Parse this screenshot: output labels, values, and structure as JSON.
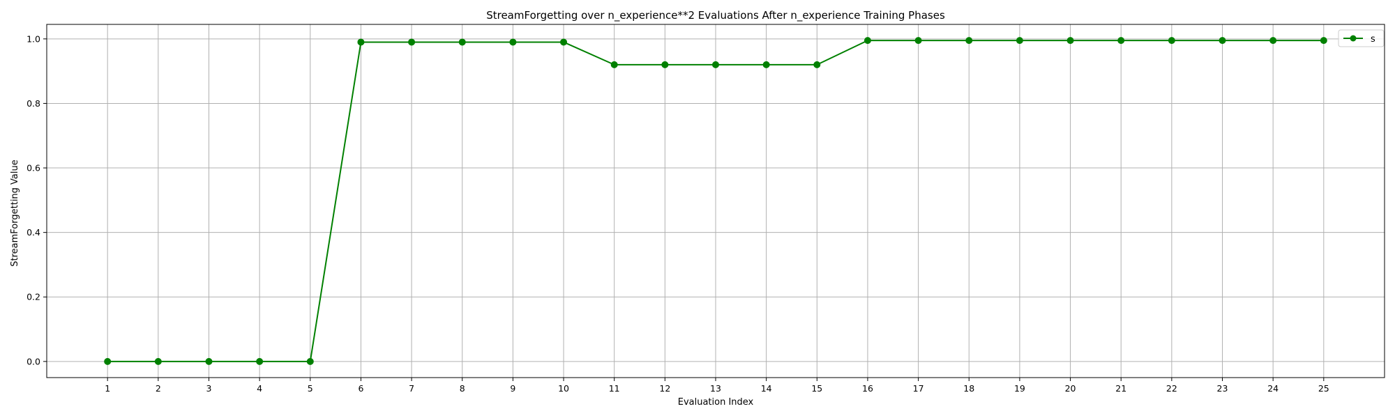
{
  "chart_data": {
    "type": "line",
    "title": "StreamForgetting over n_experience**2 Evaluations After n_experience Training Phases",
    "xlabel": "Evaluation Index",
    "ylabel": "StreamForgetting Value",
    "x": [
      1,
      2,
      3,
      4,
      5,
      6,
      7,
      8,
      9,
      10,
      11,
      12,
      13,
      14,
      15,
      16,
      17,
      18,
      19,
      20,
      21,
      22,
      23,
      24,
      25
    ],
    "xlim": [
      -0.2,
      26.2
    ],
    "ylim": [
      -0.05,
      1.045
    ],
    "xticks": [
      "1",
      "2",
      "3",
      "4",
      "5",
      "6",
      "7",
      "8",
      "9",
      "10",
      "11",
      "12",
      "13",
      "14",
      "15",
      "16",
      "17",
      "18",
      "19",
      "20",
      "21",
      "22",
      "23",
      "24",
      "25"
    ],
    "yticks": [
      0.0,
      0.2,
      0.4,
      0.6,
      0.8,
      1.0
    ],
    "ytick_labels": [
      "0.0",
      "0.2",
      "0.4",
      "0.6",
      "0.8",
      "1.0"
    ],
    "grid": true,
    "legend_position": "top-right",
    "series": [
      {
        "name": "s",
        "color": "#008000",
        "marker": "circle",
        "values": [
          0,
          0,
          0,
          0,
          0,
          0.99,
          0.99,
          0.99,
          0.99,
          0.99,
          0.92,
          0.92,
          0.92,
          0.92,
          0.92,
          0.995,
          0.995,
          0.995,
          0.995,
          0.995,
          0.995,
          0.995,
          0.995,
          0.995,
          0.995
        ]
      }
    ]
  }
}
